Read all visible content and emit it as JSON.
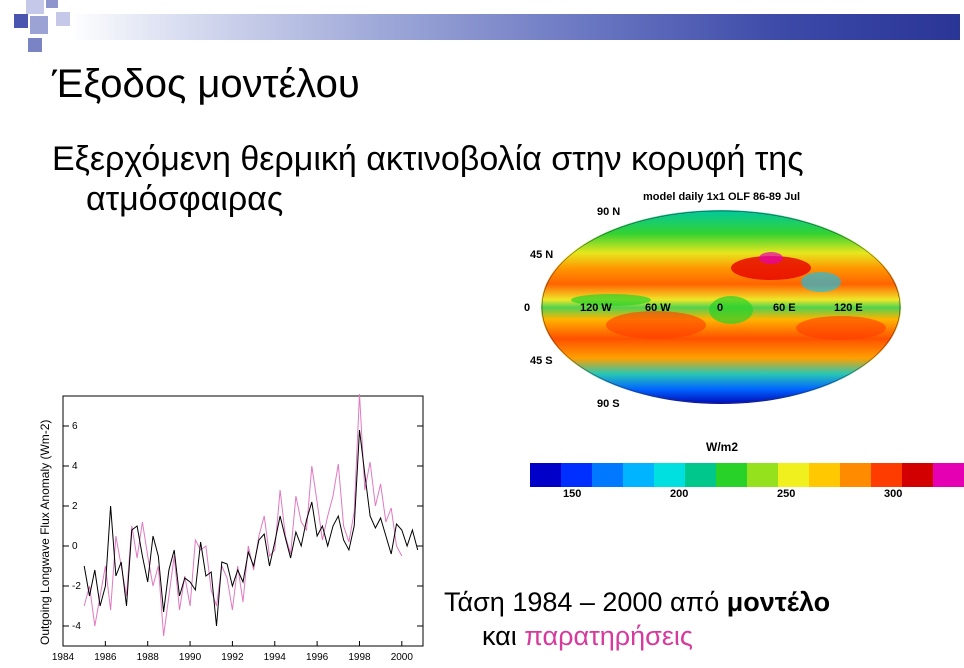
{
  "slide": {
    "title": "Έξοδος μοντέλου",
    "subtitle_line1": "Εξερχόμενη θερμική ακτινοβολία στην κορυφή της",
    "subtitle_line2": "ατμόσφαιρας"
  },
  "map": {
    "title": "model daily 1x1 OLF 86-89 Jul",
    "lat_labels": [
      "90 N",
      "45 N",
      "0",
      "45 S",
      "90 S"
    ],
    "lon_labels": [
      "120 W",
      "60 W",
      "0",
      "60 E",
      "120 E"
    ],
    "units": "W/m2",
    "colorbar_ticks": [
      "150",
      "200",
      "250",
      "300"
    ],
    "colorbar_colors": [
      "#0000c8",
      "#0030ff",
      "#0078ff",
      "#00b4ff",
      "#00e0e0",
      "#00c88c",
      "#28d228",
      "#96e11e",
      "#f0f01e",
      "#ffc800",
      "#ff8c00",
      "#ff3c00",
      "#d20000",
      "#e600b4"
    ]
  },
  "trend": {
    "line1_prefix": "Τάση 1984 – 2000 από ",
    "line1_bold": "μοντέλο",
    "line2_prefix": "και ",
    "line2_pink": "παρατηρήσεις"
  },
  "chart_data": {
    "type": "line",
    "ylabel": "Outgoing Longwave Flux Anomaly (Wm-2)",
    "ylim": [
      -5,
      7.5
    ],
    "xlim": [
      1984,
      2001
    ],
    "y_ticks": [
      "6",
      "4",
      "2",
      "0",
      "-2",
      "-4"
    ],
    "x_ticks": [
      "1984",
      "1986",
      "1988",
      "1990",
      "1992",
      "1994",
      "1996",
      "1998",
      "2000"
    ],
    "series": [
      {
        "color": "#000000",
        "x": [
          1985.0,
          1985.25,
          1985.5,
          1985.75,
          1986.0,
          1986.25,
          1986.5,
          1986.75,
          1987.0,
          1987.25,
          1987.5,
          1987.75,
          1988.0,
          1988.25,
          1988.5,
          1988.75,
          1989.0,
          1989.25,
          1989.5,
          1989.75,
          1990.0,
          1990.25,
          1990.5,
          1990.75,
          1991.0,
          1991.25,
          1991.5,
          1991.75,
          1992.0,
          1992.25,
          1992.5,
          1992.75,
          1993.0,
          1993.25,
          1993.5,
          1993.75,
          1994.0,
          1994.25,
          1994.5,
          1994.75,
          1995.0,
          1995.25,
          1995.5,
          1995.75,
          1996.0,
          1996.25,
          1996.5,
          1996.75,
          1997.0,
          1997.25,
          1997.5,
          1997.75,
          1998.0,
          1998.25,
          1998.5,
          1998.75,
          1999.0,
          1999.25,
          1999.5,
          1999.75,
          2000.0,
          2000.25,
          2000.5,
          2000.75
        ],
        "values": [
          -1.0,
          -2.5,
          -1.2,
          -3.0,
          -2.0,
          2.0,
          -1.5,
          -0.8,
          -3.0,
          0.8,
          1.0,
          -0.5,
          -1.8,
          0.5,
          -0.5,
          -3.3,
          -1.2,
          -0.2,
          -2.5,
          -1.6,
          -1.8,
          -2.2,
          0.2,
          -1.5,
          -1.3,
          -4.0,
          -0.8,
          -0.9,
          -2.0,
          -1.2,
          -1.8,
          -0.3,
          -1.0,
          0.3,
          0.6,
          -1.0,
          0.2,
          1.5,
          0.4,
          -0.6,
          0.7,
          0.0,
          1.3,
          2.2,
          0.5,
          1.0,
          0.0,
          1.0,
          1.5,
          0.3,
          -0.2,
          1.0,
          5.8,
          3.6,
          1.5,
          0.9,
          1.4,
          0.5,
          -0.4,
          1.1,
          0.8,
          0.0,
          0.8,
          -0.2
        ]
      },
      {
        "color": "#e07ac0",
        "x": [
          1985.0,
          1985.25,
          1985.5,
          1985.75,
          1986.0,
          1986.25,
          1986.5,
          1986.75,
          1987.0,
          1987.25,
          1987.5,
          1987.75,
          1988.0,
          1988.25,
          1988.5,
          1988.75,
          1989.0,
          1989.25,
          1989.5,
          1989.75,
          1990.0,
          1990.25,
          1990.5,
          1990.75,
          1991.0,
          1991.25,
          1991.5,
          1991.75,
          1992.0,
          1992.25,
          1992.5,
          1992.75,
          1993.0,
          1993.25,
          1993.5,
          1993.75,
          1994.0,
          1994.25,
          1994.5,
          1994.75,
          1995.0,
          1995.25,
          1995.5,
          1995.75,
          1996.0,
          1996.25,
          1996.5,
          1996.75,
          1997.0,
          1997.25,
          1997.5,
          1997.75,
          1998.0,
          1998.25,
          1998.5,
          1998.75,
          1999.0,
          1999.25,
          1999.5,
          1999.75,
          2000.0
        ],
        "values": [
          -3.0,
          -2.0,
          -4.0,
          -2.5,
          -1.0,
          -3.2,
          0.5,
          -1.0,
          -2.5,
          1.0,
          -0.6,
          1.2,
          -0.5,
          -2.0,
          -1.0,
          -4.5,
          -2.5,
          -0.5,
          -3.2,
          -1.5,
          -3.0,
          0.3,
          -0.2,
          0.0,
          -2.2,
          -3.0,
          -1.0,
          -1.6,
          -3.2,
          -1.0,
          -2.8,
          0.0,
          -1.2,
          0.5,
          1.5,
          -0.5,
          -0.2,
          2.8,
          0.5,
          -0.4,
          2.5,
          1.2,
          0.8,
          4.0,
          2.2,
          0.3,
          1.5,
          2.5,
          4.1,
          1.0,
          0.2,
          1.7,
          7.6,
          2.8,
          4.2,
          2.0,
          3.1,
          1.2,
          1.9,
          0.0,
          -0.5
        ]
      }
    ]
  }
}
